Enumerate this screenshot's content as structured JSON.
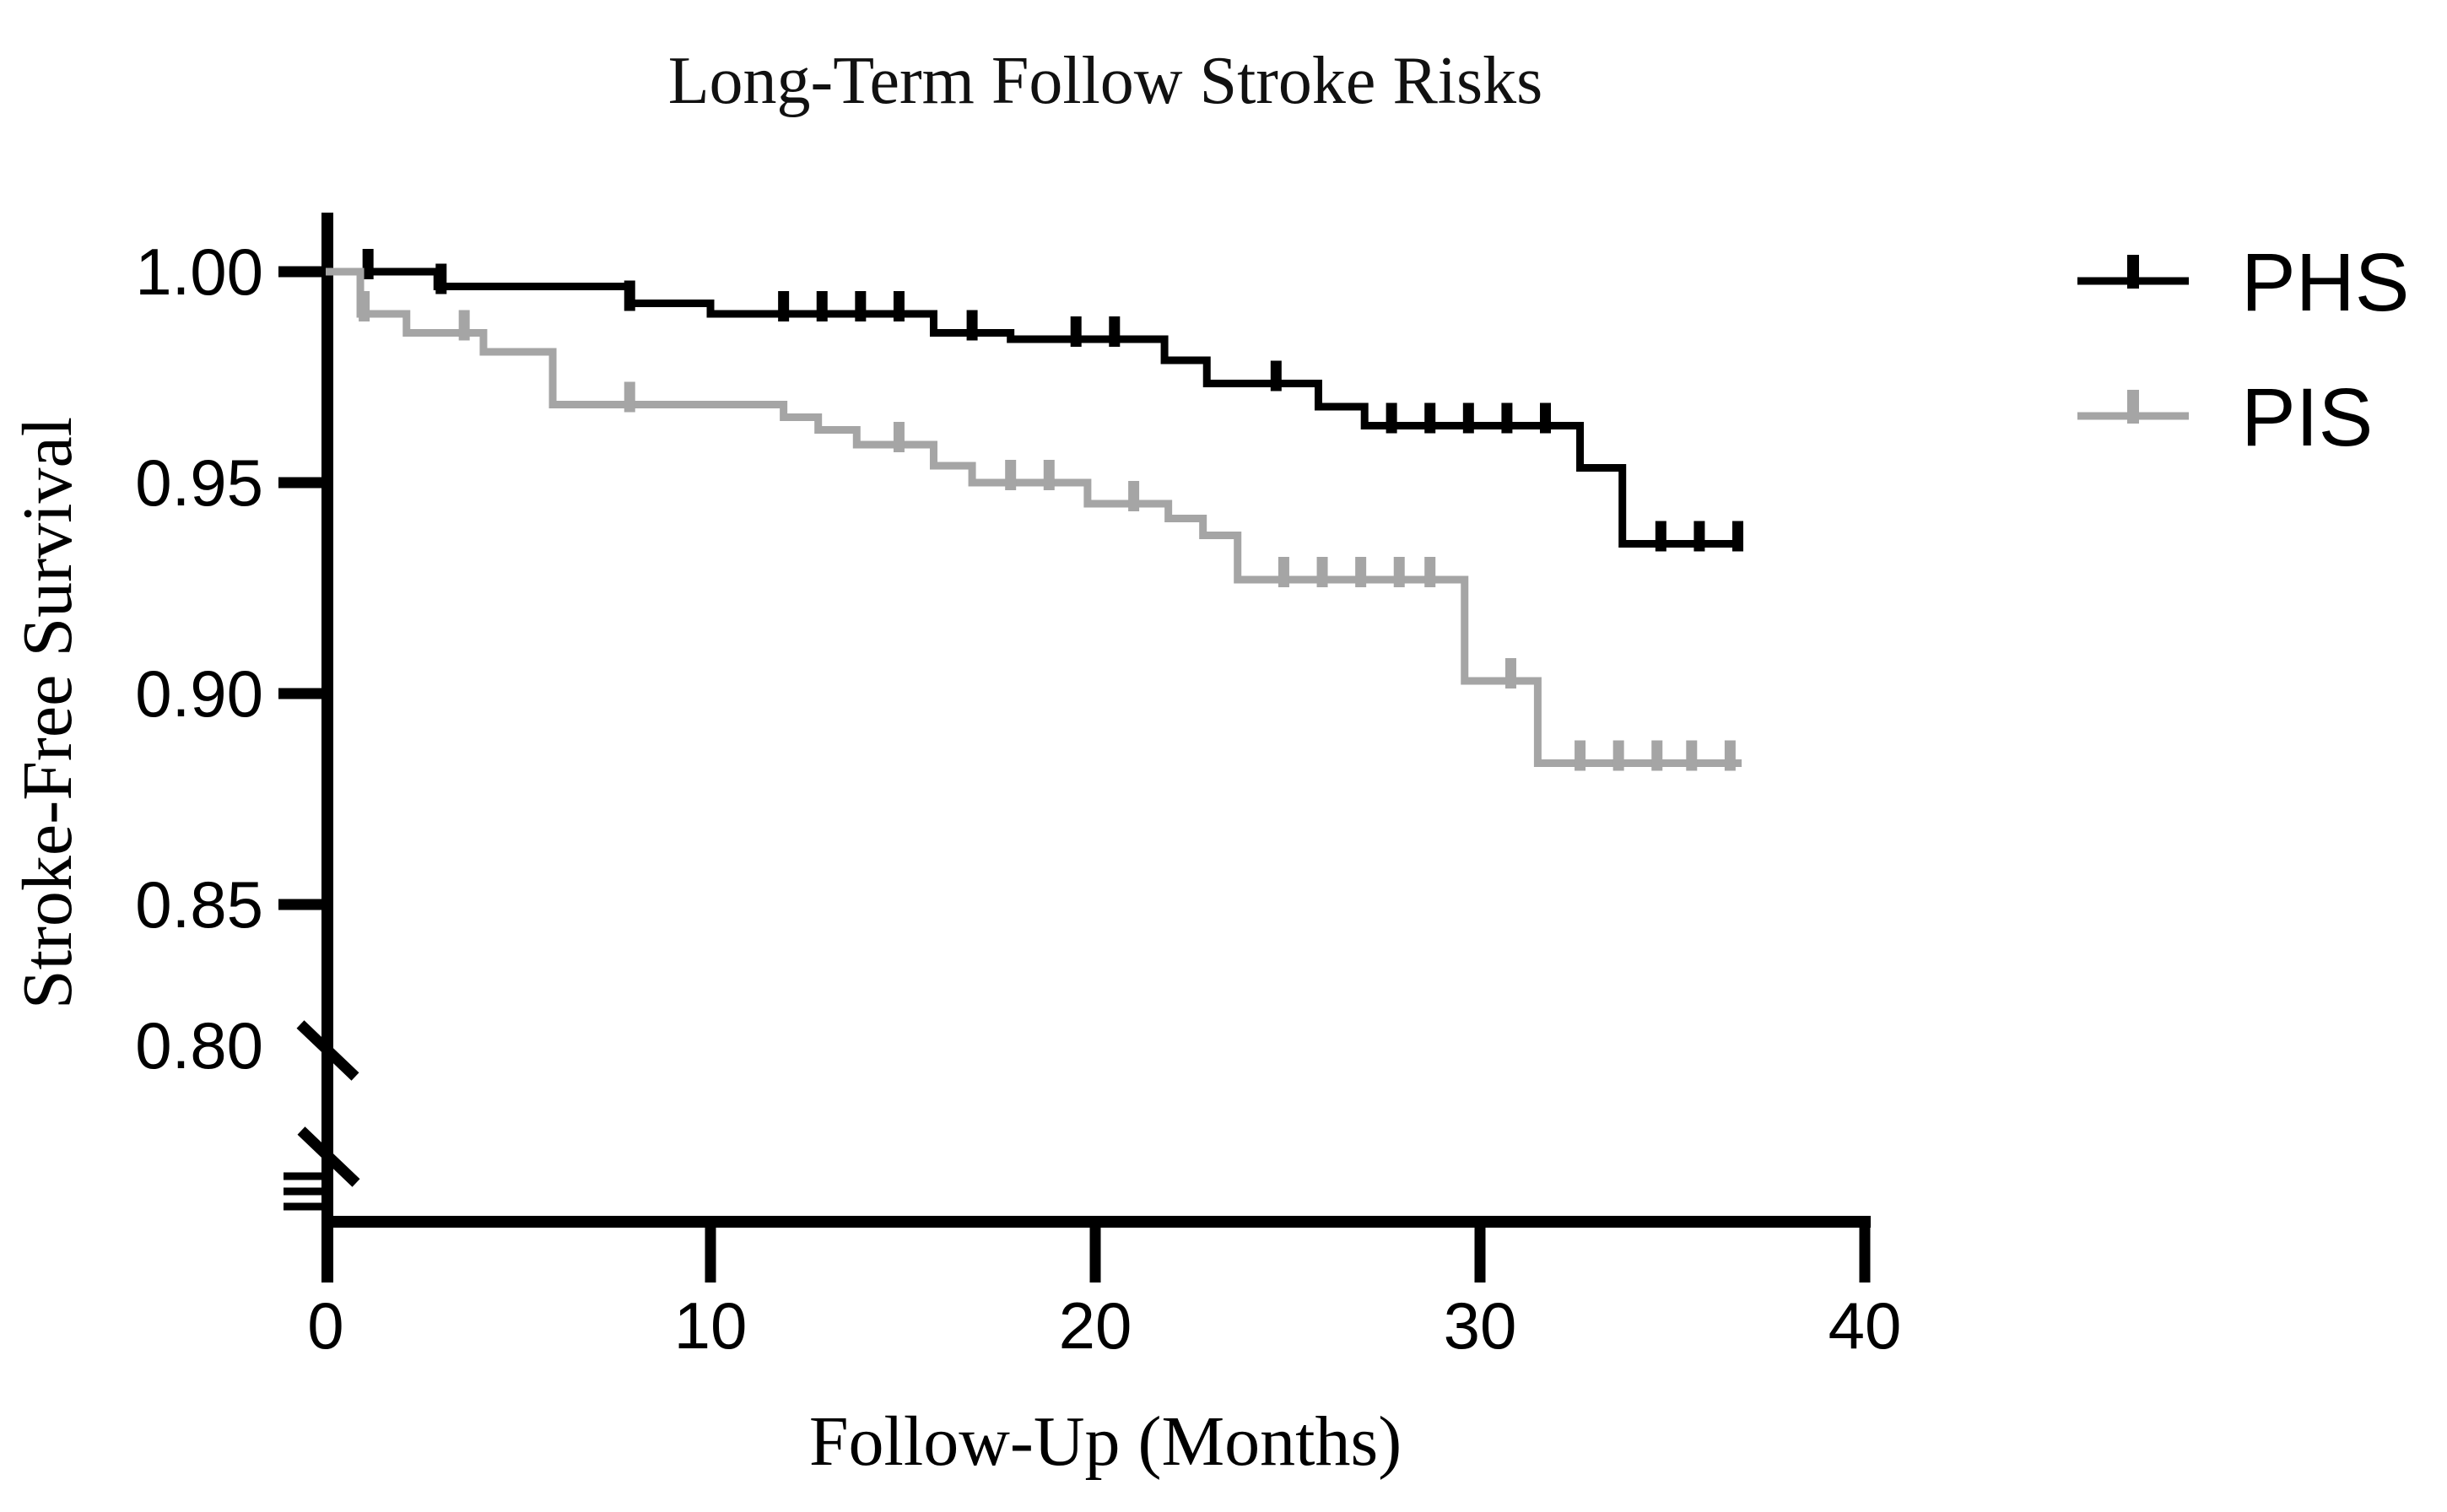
{
  "title": "Long-Term Follow Stroke Risks",
  "y_axis": {
    "label": "Stroke-Free Survival",
    "ticks": [
      "1.00",
      "0.95",
      "0.90",
      "0.85"
    ],
    "break_label": "0.80"
  },
  "x_axis": {
    "label": "Follow-Up (Months)",
    "ticks": [
      "0",
      "10",
      "20",
      "30",
      "40"
    ]
  },
  "legend": [
    {
      "name": "PHS",
      "color": "#000000"
    },
    {
      "name": "PIS",
      "color": "#A5A5A5"
    }
  ],
  "chart_data": {
    "type": "line",
    "subtype": "kaplan-meier-step-curves",
    "title": "Long-Term Follow Stroke Risks",
    "xlabel": "Follow-Up (Months)",
    "ylabel": "Stroke-Free Survival",
    "xlim": [
      0,
      40
    ],
    "ylim_shown": [
      0.8,
      1.0
    ],
    "y_axis_break_below": 0.8,
    "y_tick_values": [
      1.0,
      0.95,
      0.9,
      0.85
    ],
    "x_tick_values": [
      0,
      10,
      20,
      30,
      40
    ],
    "grid": false,
    "legend_position": "right",
    "series": [
      {
        "name": "PHS",
        "color": "#000000",
        "steps": [
          [
            0,
            1.0
          ],
          [
            2.9,
            0.9965
          ],
          [
            7.9,
            0.9925
          ],
          [
            10,
            0.99
          ],
          [
            15.8,
            0.9855
          ],
          [
            17.8,
            0.984
          ],
          [
            21.8,
            0.979
          ],
          [
            22.9,
            0.9735
          ],
          [
            25.8,
            0.968
          ],
          [
            27,
            0.9635
          ],
          [
            32.6,
            0.9535
          ],
          [
            33.7,
            0.9355
          ]
        ],
        "end_time": 36.8,
        "censor_times": [
          1.1,
          3.0,
          7.9,
          11.9,
          12.9,
          13.9,
          14.9,
          16.8,
          19.5,
          20.5,
          24.7,
          27.7,
          28.7,
          29.7,
          30.7,
          31.7,
          34.7,
          35.7,
          36.7
        ]
      },
      {
        "name": "PIS",
        "color": "#A5A5A5",
        "steps": [
          [
            0,
            1.0
          ],
          [
            0.9,
            0.99
          ],
          [
            2.1,
            0.9855
          ],
          [
            4.1,
            0.981
          ],
          [
            5.9,
            0.9685
          ],
          [
            11.9,
            0.9655
          ],
          [
            12.8,
            0.9625
          ],
          [
            13.8,
            0.959
          ],
          [
            15.8,
            0.954
          ],
          [
            16.8,
            0.95
          ],
          [
            19.8,
            0.945
          ],
          [
            21.9,
            0.9415
          ],
          [
            22.8,
            0.9375
          ],
          [
            23.7,
            0.927
          ],
          [
            29.6,
            0.903
          ],
          [
            31.5,
            0.8835
          ]
        ],
        "end_time": 36.8,
        "censor_times": [
          1.0,
          3.6,
          7.9,
          14.9,
          17.8,
          18.8,
          21.0,
          24.9,
          25.9,
          26.9,
          27.9,
          28.7,
          30.8,
          32.6,
          33.6,
          34.6,
          35.5,
          36.5
        ]
      }
    ]
  }
}
